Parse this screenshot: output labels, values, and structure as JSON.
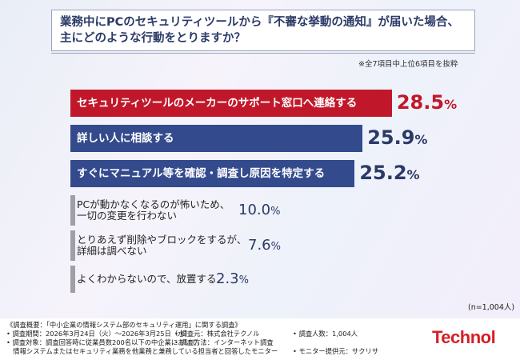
{
  "title": {
    "line1": "業務中にPCのセキュリティツールから『不審な挙動の通知』が届いた場合、",
    "line2": "主にどのような行動をとりますか？"
  },
  "extract_note": "※全7項目中上位6項目を抜粋",
  "sample_note": "(n=1,004人)",
  "colors": {
    "red": "#c0182a",
    "navy": "#334a8c",
    "gray": "#9ea0a6",
    "text_navy": "#2b3a67"
  },
  "chart_data": {
    "type": "bar",
    "orientation": "horizontal",
    "unit": "%",
    "categories": [
      [
        "セキュリティツールのメーカーのサポート窓口へ連絡する"
      ],
      [
        "詳しい人に相談する"
      ],
      [
        "すぐにマニュアル等を確認・調査し原因を特定する"
      ],
      [
        "PCが動かなくなるのが怖いため、",
        "一切の変更を行わない"
      ],
      [
        "とりあえず削除やブロックをするが、",
        "詳細は調べない"
      ],
      [
        "よくわからないので、放置する"
      ]
    ],
    "values": [
      28.5,
      25.9,
      25.2,
      10.0,
      7.6,
      2.3
    ],
    "value_labels": [
      "28.5",
      "25.9",
      "25.2",
      "10.0",
      "7.6",
      "2.3"
    ]
  },
  "footer": {
    "col1": [
      "《調査概要：「中小企業の情報システム部のセキュリティ運用」に関する調査》",
      "• 調査期間：2026年3月24日（火）～2026年3月25日（水）",
      "• 調査対象：調査回答時に従業員数200名以下の中企業において、",
      "　情報システムまたはセキュリティ業務を他業務と兼務している担当者と回答したモニター"
    ],
    "col2": [
      "• 調査元：株式会社テクノル",
      "• 調査方法：インターネット調査"
    ],
    "col3": [
      "• 調査人数：1,004人",
      "• モニター提供元：サクリサ"
    ],
    "logo": "Technol"
  }
}
